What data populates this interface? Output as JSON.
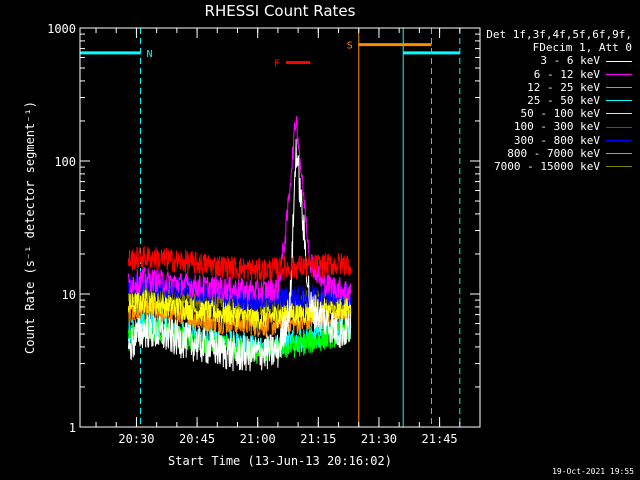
{
  "chart_data": {
    "type": "line",
    "title": "RHESSI Count Rates",
    "xlabel": "Start Time (13-Jun-13 20:16:02)",
    "ylabel": "Count Rate (s⁻¹ detector segment⁻¹)",
    "yscale": "log",
    "ylim": [
      1,
      1000
    ],
    "xlim": [
      "20:16:02",
      "21:55:00"
    ],
    "x_ticks": [
      "20:30",
      "20:45",
      "21:00",
      "21:15",
      "21:30",
      "21:45"
    ],
    "y_ticks": [
      "1",
      "10",
      "100",
      "1000"
    ],
    "legend_header": [
      "Det 1f,3f,4f,5f,6f,9f,",
      "FDecim 1, Att 0"
    ],
    "legend_placement": "right-outside",
    "series": [
      {
        "name": "3 - 6 keV",
        "color": "#ffffff",
        "points": [
          [
            "20:28",
            3.8
          ],
          [
            "20:30",
            4.8
          ],
          [
            "20:32",
            5.4
          ],
          [
            "20:35",
            5.1
          ],
          [
            "20:45",
            4.2
          ],
          [
            "20:55",
            3.5
          ],
          [
            "21:05",
            3.7
          ],
          [
            "21:08",
            8
          ],
          [
            "21:09:30",
            130
          ],
          [
            "21:11",
            40
          ],
          [
            "21:13",
            8
          ],
          [
            "21:20",
            5.2
          ],
          [
            "21:23",
            5.5
          ]
        ]
      },
      {
        "name": "6 - 12 keV",
        "color": "#ff00ff",
        "points": [
          [
            "20:28",
            12
          ],
          [
            "20:32",
            13
          ],
          [
            "20:45",
            11.5
          ],
          [
            "21:00",
            10.5
          ],
          [
            "21:05",
            11
          ],
          [
            "21:07",
            30
          ],
          [
            "21:09:30",
            220
          ],
          [
            "21:11",
            70
          ],
          [
            "21:13",
            18
          ],
          [
            "21:16",
            12
          ],
          [
            "21:23",
            10.5
          ]
        ]
      },
      {
        "name": "12 - 25 keV",
        "color": "#00ff00",
        "points": [
          [
            "20:28",
            4.5
          ],
          [
            "20:32",
            5.6
          ],
          [
            "20:45",
            4.3
          ],
          [
            "21:00",
            3.6
          ],
          [
            "21:10",
            4.1
          ],
          [
            "21:23",
            5.2
          ]
        ]
      },
      {
        "name": "25 - 50 keV",
        "color": "#00ffff",
        "points": [
          [
            "20:28",
            5.2
          ],
          [
            "20:32",
            6.0
          ],
          [
            "20:45",
            4.8
          ],
          [
            "21:00",
            4.0
          ],
          [
            "21:10",
            4.4
          ],
          [
            "21:23",
            5.6
          ]
        ]
      },
      {
        "name": "50 - 100 keV",
        "color": "#ffff00",
        "points": [
          [
            "20:28",
            8.2
          ],
          [
            "20:32",
            8.8
          ],
          [
            "20:45",
            7.6
          ],
          [
            "21:00",
            6.6
          ],
          [
            "21:10",
            7.2
          ],
          [
            "21:23",
            8.0
          ]
        ]
      },
      {
        "name": "100 - 300 keV",
        "color": "#ff0000",
        "points": [
          [
            "20:28",
            18
          ],
          [
            "20:32",
            19
          ],
          [
            "20:45",
            17
          ],
          [
            "21:00",
            15
          ],
          [
            "21:10",
            16
          ],
          [
            "21:23",
            17
          ]
        ]
      },
      {
        "name": "300 - 800 keV",
        "color": "#0000ff",
        "points": [
          [
            "20:28",
            11
          ],
          [
            "20:32",
            12
          ],
          [
            "20:45",
            10.5
          ],
          [
            "21:00",
            9.0
          ],
          [
            "21:10",
            9.5
          ],
          [
            "21:23",
            10
          ]
        ]
      },
      {
        "name": "800 - 7000 keV",
        "color": "#ff8c00",
        "points": [
          [
            "20:28",
            7.0
          ],
          [
            "20:32",
            7.4
          ],
          [
            "20:45",
            6.4
          ],
          [
            "21:00",
            5.8
          ],
          [
            "21:10",
            6.0
          ],
          [
            "21:23",
            6.6
          ]
        ]
      },
      {
        "name": "7000 - 15000 keV",
        "color": "#808000",
        "points": [
          [
            "20:28",
            9.5
          ],
          [
            "20:32",
            10.2
          ],
          [
            "20:45",
            9.0
          ],
          [
            "21:00",
            8.1
          ],
          [
            "21:10",
            8.6
          ],
          [
            "21:23",
            9.4
          ]
        ]
      }
    ],
    "annotations": [
      {
        "label": "N",
        "color": "#00ffff",
        "start": "20:16:02",
        "end": "20:31",
        "level": 650,
        "solid_line": "20:16:02",
        "dashed_line": "20:31"
      },
      {
        "label": "N",
        "color": "#00ffff",
        "start": "21:36",
        "end": "21:50",
        "level": 650,
        "solid_line": "21:36",
        "dashed_line": "21:50"
      },
      {
        "label": "S",
        "color": "#ff8c00",
        "start": "21:25",
        "end": "21:43",
        "level": 750,
        "solid_line": "21:25",
        "dashed_line": "21:43"
      },
      {
        "label": "F",
        "color": "#ff0000",
        "start": "21:07",
        "end": "21:13",
        "level": 550
      }
    ],
    "timestamp": "19-Oct-2021 19:55"
  }
}
